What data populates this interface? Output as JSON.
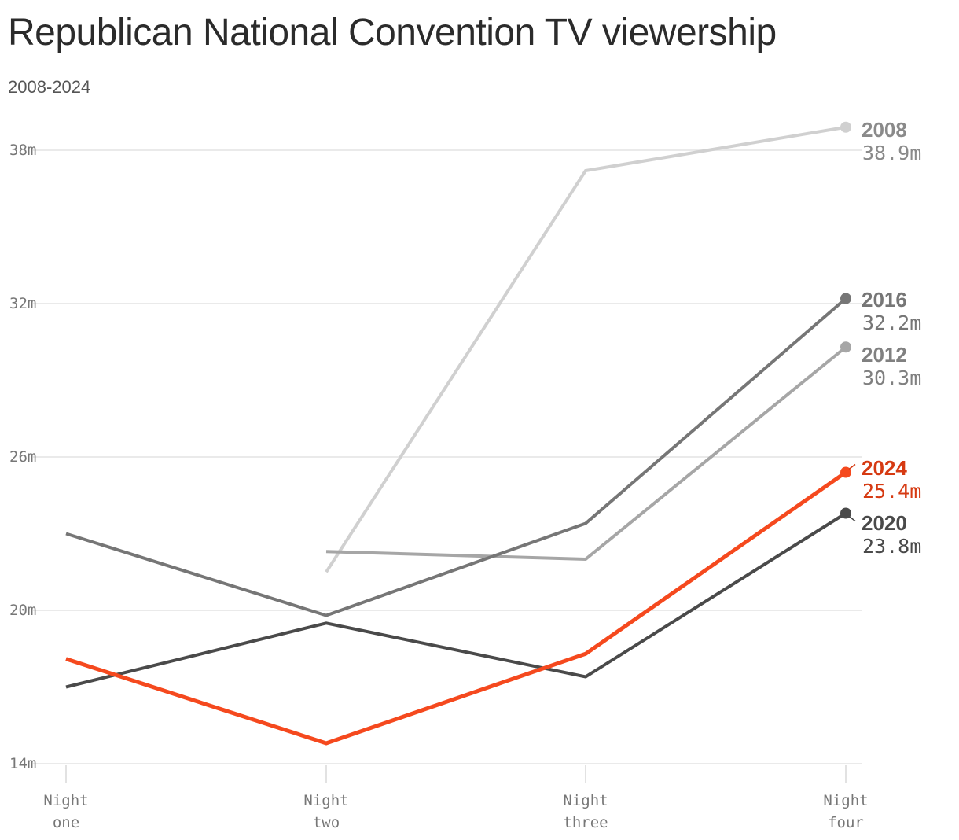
{
  "title": "Republican National Convention TV viewership",
  "subtitle": "2008-2024",
  "chart_data": {
    "type": "line",
    "title": "Republican National Convention TV viewership",
    "subtitle": "2008-2024",
    "categories": [
      "Night one",
      "Night two",
      "Night three",
      "Night four"
    ],
    "category_lines": [
      [
        "Night",
        "one"
      ],
      [
        "Night",
        "two"
      ],
      [
        "Night",
        "three"
      ],
      [
        "Night",
        "four"
      ]
    ],
    "ylim": [
      14,
      38
    ],
    "yticks": [
      14,
      20,
      26,
      32,
      38
    ],
    "ytick_labels": [
      "14m",
      "20m",
      "26m",
      "32m",
      "38m"
    ],
    "grid": true,
    "legend": "direct labels at line ends",
    "series": [
      {
        "name": "2008",
        "end_label": "38.9m",
        "color": "#d0d0d0",
        "values": [
          null,
          21.5,
          37.2,
          38.9
        ]
      },
      {
        "name": "2012",
        "end_label": "30.3m",
        "color": "#a6a6a6",
        "values": [
          null,
          22.3,
          22.0,
          30.3
        ]
      },
      {
        "name": "2016",
        "end_label": "32.2m",
        "color": "#767676",
        "values": [
          23.0,
          19.8,
          23.4,
          32.2
        ]
      },
      {
        "name": "2020",
        "end_label": "23.8m",
        "color": "#4a4a4a",
        "values": [
          17.0,
          19.5,
          17.4,
          23.8
        ]
      },
      {
        "name": "2024",
        "end_label": "25.4m",
        "color": "#f5491e",
        "label_color": "#d63a12",
        "values": [
          18.1,
          14.8,
          18.3,
          25.4
        ]
      }
    ]
  }
}
